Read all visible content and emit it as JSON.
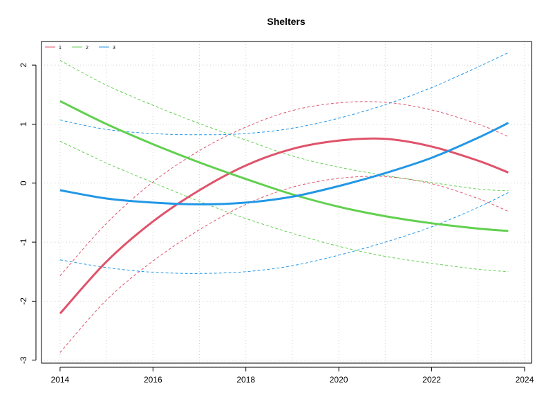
{
  "chart_data": {
    "type": "line",
    "title": "Shelters",
    "xlabel": "",
    "ylabel": "",
    "xlim": [
      2013.6,
      2024.15
    ],
    "ylim": [
      -3.05,
      2.4
    ],
    "xticks": [
      2014,
      2016,
      2018,
      2020,
      2022,
      2024
    ],
    "xtick_labels": [
      "2014",
      "2016",
      "2018",
      "2020",
      "2022",
      "2024"
    ],
    "yticks": [
      -3,
      -2,
      -1,
      0,
      1,
      2
    ],
    "ytick_labels": [
      "-3",
      "-2",
      "-1",
      "0",
      "1",
      "2"
    ],
    "grid": true,
    "legend_position": "top-left",
    "x": [
      2014,
      2015,
      2016,
      2017,
      2018,
      2019,
      2020,
      2021,
      2022,
      2023,
      2023.65
    ],
    "series": [
      {
        "name": "1",
        "color": "#DF536B",
        "values": [
          -2.21,
          -1.33,
          -0.65,
          -0.12,
          0.3,
          0.58,
          0.72,
          0.75,
          0.62,
          0.38,
          0.18
        ],
        "upper": [
          -1.57,
          -0.68,
          0.02,
          0.55,
          0.95,
          1.23,
          1.36,
          1.37,
          1.24,
          1.0,
          0.79
        ],
        "lower": [
          -2.87,
          -1.98,
          -1.32,
          -0.79,
          -0.36,
          -0.07,
          0.08,
          0.11,
          -0.01,
          -0.26,
          -0.48
        ]
      },
      {
        "name": "2",
        "color": "#61D04F",
        "values": [
          1.39,
          1.0,
          0.66,
          0.35,
          0.07,
          -0.19,
          -0.4,
          -0.56,
          -0.68,
          -0.77,
          -0.81
        ],
        "upper": [
          2.08,
          1.66,
          1.32,
          1.01,
          0.73,
          0.46,
          0.27,
          0.13,
          0.01,
          -0.1,
          -0.13
        ],
        "lower": [
          0.71,
          0.34,
          0.01,
          -0.31,
          -0.6,
          -0.85,
          -1.07,
          -1.24,
          -1.36,
          -1.46,
          -1.5
        ]
      },
      {
        "name": "3",
        "color": "#2297E6",
        "values": [
          -0.12,
          -0.26,
          -0.33,
          -0.36,
          -0.33,
          -0.23,
          -0.05,
          0.17,
          0.43,
          0.77,
          1.02
        ],
        "upper": [
          1.07,
          0.91,
          0.84,
          0.82,
          0.84,
          0.93,
          1.1,
          1.33,
          1.62,
          1.97,
          2.21
        ],
        "lower": [
          -1.3,
          -1.43,
          -1.51,
          -1.53,
          -1.5,
          -1.4,
          -1.22,
          -1.0,
          -0.74,
          -0.41,
          -0.16
        ]
      }
    ]
  }
}
